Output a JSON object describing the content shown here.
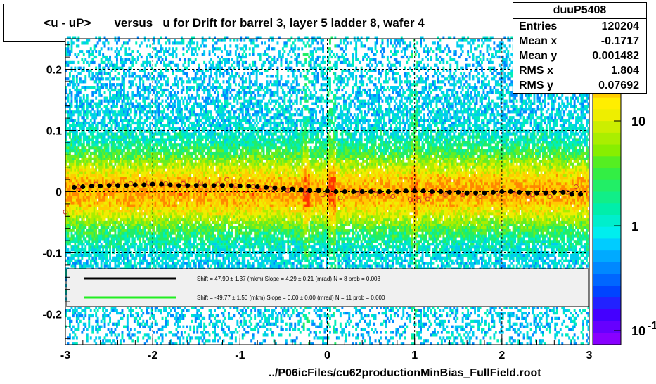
{
  "chart_data": {
    "type": "heatmap",
    "title": "<u - uP>       versus   u for Drift for barrel 3, layer 5 ladder 8, wafer 4",
    "xlim": [
      -3,
      3
    ],
    "ylim": [
      -0.25,
      0.25
    ],
    "x_ticks": [
      "-3",
      "-2",
      "-1",
      "0",
      "1",
      "2",
      "3"
    ],
    "y_ticks": [
      "0.2",
      "0.1",
      "0",
      "-0.1",
      "-0.2"
    ],
    "z_scale": "log",
    "z_ticks": [
      "10",
      "1",
      "10"
    ],
    "z_tick_exponent": "-1",
    "grid": true,
    "stats": {
      "name": "duuP5408",
      "rows": [
        {
          "label": "Entries",
          "value": "120204"
        },
        {
          "label": "Mean x",
          "value": "-0.1717"
        },
        {
          "label": "Mean y",
          "value": "0.001482"
        },
        {
          "label": "RMS x",
          "value": "1.804"
        },
        {
          "label": "RMS y",
          "value": "0.07692"
        }
      ]
    },
    "legend": {
      "placement": "bottom",
      "entries": [
        {
          "color": "#000000",
          "text": "Shift =    47.90 ± 1.37 (mkm) Slope =     4.29 ± 0.21 (mrad)  N = 8 prob = 0.003"
        },
        {
          "color": "#22ee22",
          "text": "Shift =   -49.77 ± 1.50 (mkm) Slope =     0.00 ± 0.00 (mrad)  N = 11 prob = 0.000"
        }
      ]
    },
    "profile_black": {
      "x": [
        -2.9,
        -2.8,
        -2.7,
        -2.6,
        -2.5,
        -2.4,
        -2.3,
        -2.2,
        -2.1,
        -2.0,
        -1.9,
        -1.8,
        -1.7,
        -1.6,
        -1.5,
        -1.4,
        -1.3,
        -1.2,
        -1.1,
        -1.0,
        -0.9,
        -0.8,
        -0.7,
        -0.6,
        -0.5,
        -0.4,
        -0.3,
        -0.2,
        -0.1,
        0.0,
        0.1,
        0.2,
        0.3,
        0.4,
        0.5,
        0.6,
        0.7,
        0.8,
        0.9,
        1.0,
        1.1,
        1.2,
        1.3,
        1.4,
        1.5,
        1.6,
        1.7,
        1.8,
        1.9,
        2.0,
        2.1,
        2.2,
        2.3,
        2.4,
        2.5,
        2.6,
        2.7,
        2.8,
        2.9
      ],
      "y": [
        0.007,
        0.008,
        0.009,
        0.009,
        0.01,
        0.01,
        0.01,
        0.011,
        0.011,
        0.012,
        0.012,
        0.011,
        0.01,
        0.01,
        0.01,
        0.01,
        0.01,
        0.01,
        0.01,
        0.009,
        0.009,
        0.008,
        0.007,
        0.006,
        0.005,
        0.004,
        0.003,
        0.002,
        0.002,
        0.001,
        0.0,
        0.0,
        0.0,
        0.0,
        0.0,
        0.0,
        0.0,
        0.0,
        0.001,
        0.001,
        0.001,
        0.0,
        0.0,
        -0.001,
        -0.001,
        -0.002,
        -0.002,
        -0.002,
        -0.001,
        0.0,
        0.0,
        -0.001,
        -0.002,
        -0.002,
        -0.002,
        -0.001,
        -0.001,
        -0.004,
        -0.004
      ]
    },
    "profile_open": {
      "x": [
        -3.0,
        -2.85,
        -2.65,
        -2.45,
        -2.25,
        -2.05,
        -1.85,
        -1.65,
        -1.45,
        -1.25,
        -1.15,
        -1.05,
        -0.85,
        -0.65,
        -0.45,
        -0.25,
        -0.05,
        0.15,
        0.35,
        0.55,
        0.75,
        0.95,
        1.05,
        1.15,
        1.35,
        1.55,
        1.75,
        1.95,
        2.15,
        2.35,
        2.55,
        2.75,
        2.85
      ],
      "y": [
        -0.033,
        0.008,
        0.012,
        0.012,
        0.013,
        0.014,
        0.013,
        0.013,
        0.014,
        0.012,
        0.02,
        0.01,
        0.008,
        0.005,
        0.002,
        -0.002,
        -0.005,
        -0.01,
        -0.004,
        -0.004,
        -0.008,
        -0.013,
        -0.015,
        -0.012,
        -0.005,
        -0.005,
        -0.008,
        -0.002,
        -0.004,
        -0.005,
        -0.008,
        -0.001,
        0.008
      ]
    }
  },
  "footer": "../P06icFiles/cu62productionMinBias_FullField.root"
}
